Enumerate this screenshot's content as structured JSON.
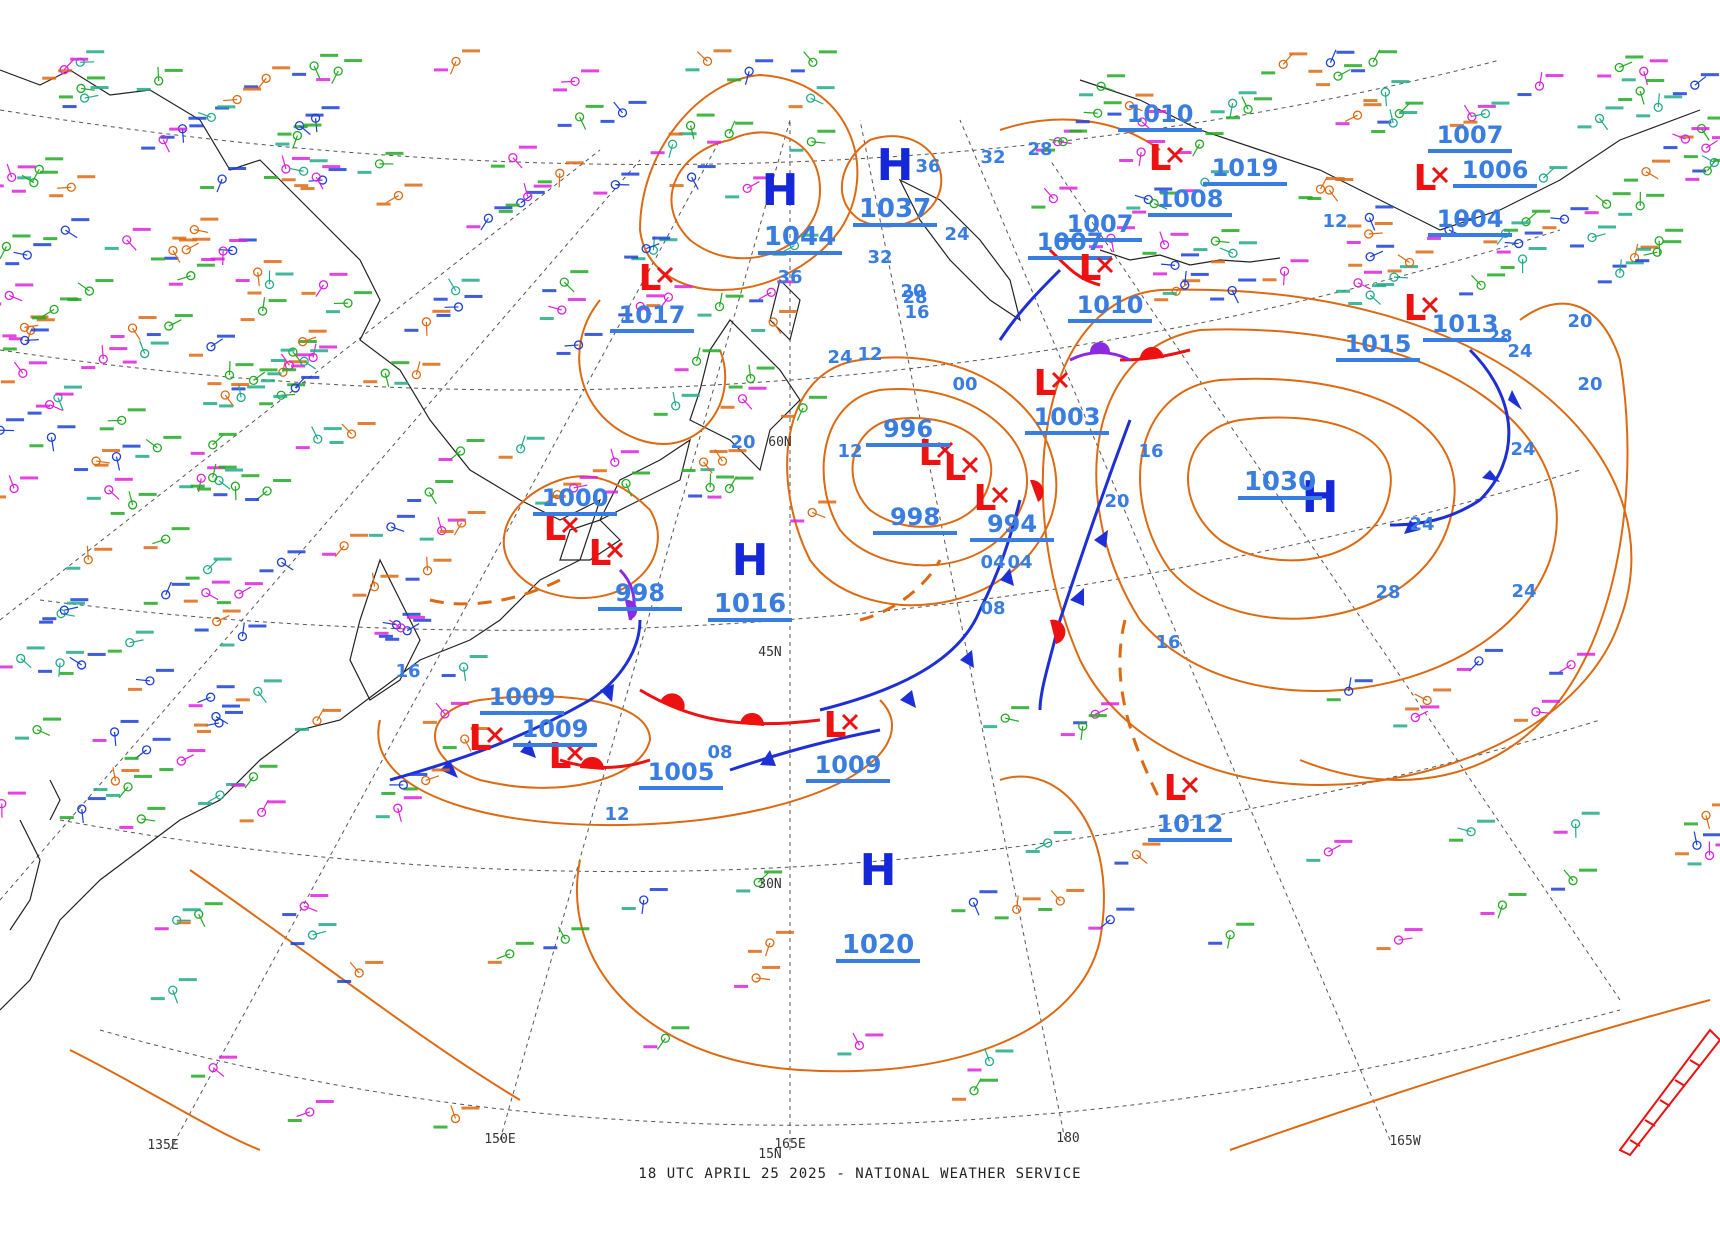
{
  "footer": {
    "caption": "18 UTC APRIL 25 2025 - NATIONAL WEATHER SERVICE"
  },
  "colors": {
    "isobar": "#dd6a12",
    "blue_label": "#3a7de0",
    "high": "#1528d9",
    "low": "#ee1111",
    "cold_front": "#1d2fd6",
    "warm_front": "#ee1111",
    "occluded": "#8a2be2",
    "grid": "#444444",
    "coast": "#222222",
    "stations": [
      "#22aa22",
      "#dd6a12",
      "#1b3fd8",
      "#dd22dd",
      "#22aa88"
    ]
  },
  "grid_labels": {
    "lon": [
      "135E",
      "150E",
      "165E",
      "180",
      "165W"
    ],
    "lat": [
      "15N",
      "30N",
      "45N",
      "60N"
    ]
  },
  "highs": [
    {
      "letter": "H",
      "pressure": "1044"
    },
    {
      "letter": "H",
      "pressure": "1037"
    },
    {
      "letter": "H",
      "pressure": "1016"
    },
    {
      "letter": "H",
      "pressure": "1020"
    },
    {
      "letter": "H",
      "pressure": "1030"
    }
  ],
  "lows": [
    {
      "pressure": "1017"
    },
    {
      "pressure": "1000"
    },
    {
      "pressure": "998"
    },
    {
      "pressure": "996"
    },
    {
      "pressure": "998"
    },
    {
      "pressure": "994"
    },
    {
      "pressure": "1003"
    },
    {
      "pressure": "1009"
    },
    {
      "pressure": "1009"
    },
    {
      "pressure": "1005"
    },
    {
      "pressure": "1009"
    },
    {
      "pressure": "1012"
    },
    {
      "pressure": "1010"
    },
    {
      "pressure": "1008"
    },
    {
      "pressure": "1019"
    },
    {
      "pressure": "1007"
    },
    {
      "pressure": "1007"
    },
    {
      "pressure": "1010"
    },
    {
      "pressure": "1007"
    },
    {
      "pressure": "1006"
    },
    {
      "pressure": "1004"
    },
    {
      "pressure": "1015"
    },
    {
      "pressure": "1013"
    }
  ],
  "isobar_labels": [
    "36",
    "24",
    "32",
    "28",
    "20",
    "16",
    "12",
    "08",
    "04",
    "00",
    "20",
    "24",
    "28",
    "20",
    "16",
    "12",
    "24",
    "20",
    "28",
    "24",
    "16",
    "12",
    "08",
    "04",
    "12",
    "16",
    "20",
    "24",
    "20",
    "32",
    "28",
    "36",
    "24",
    "12",
    "16"
  ]
}
